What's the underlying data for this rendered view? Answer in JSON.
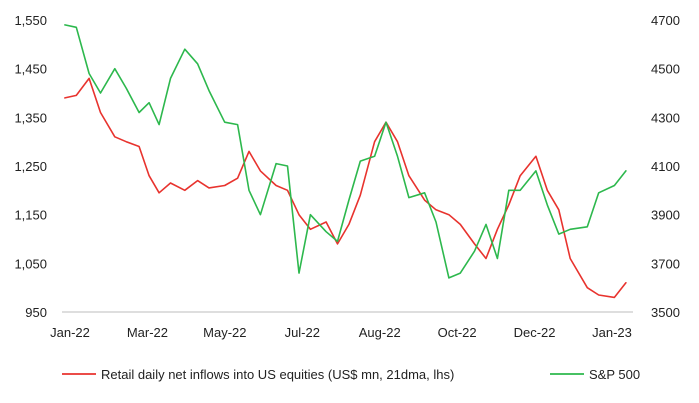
{
  "chart_data": {
    "type": "line",
    "title": "",
    "xlabel": "",
    "ylabel": "",
    "x_tick_labels": [
      "Jan-22",
      "Mar-22",
      "May-22",
      "Jul-22",
      "Aug-22",
      "Oct-22",
      "Dec-22",
      "Jan-23"
    ],
    "y_left": {
      "ticks": [
        "1,550",
        "1,450",
        "1,350",
        "1,250",
        "1,150",
        "1,050",
        "950"
      ],
      "range": [
        950,
        1550
      ]
    },
    "y_right": {
      "ticks": [
        "4700",
        "4500",
        "4300",
        "4100",
        "3900",
        "3700",
        "3500"
      ],
      "range": [
        3500,
        4700
      ]
    },
    "grid": false,
    "legend_position": "bottom",
    "series": [
      {
        "name": "Retail daily net inflows into US equities (US$ mn, 21dma, lhs)",
        "color": "#e8332e",
        "axis": "left",
        "x": [
          "2022-01-03",
          "2022-01-11",
          "2022-01-20",
          "2022-01-28",
          "2022-02-07",
          "2022-02-15",
          "2022-02-24",
          "2022-03-03",
          "2022-03-10",
          "2022-03-18",
          "2022-03-28",
          "2022-04-06",
          "2022-04-14",
          "2022-04-25",
          "2022-05-04",
          "2022-05-12",
          "2022-05-20",
          "2022-05-31",
          "2022-06-08",
          "2022-06-16",
          "2022-06-24",
          "2022-07-05",
          "2022-07-13",
          "2022-07-21",
          "2022-07-29",
          "2022-08-08",
          "2022-08-16",
          "2022-08-24",
          "2022-09-01",
          "2022-09-12",
          "2022-09-20",
          "2022-09-29",
          "2022-10-07",
          "2022-10-17",
          "2022-10-25",
          "2022-11-02",
          "2022-11-10",
          "2022-11-18",
          "2022-11-29",
          "2022-12-07",
          "2022-12-15",
          "2022-12-23",
          "2023-01-04",
          "2023-01-12",
          "2023-01-23",
          "2023-01-31"
        ],
        "values": [
          1390,
          1395,
          1430,
          1360,
          1310,
          1300,
          1290,
          1230,
          1195,
          1215,
          1200,
          1220,
          1205,
          1210,
          1225,
          1280,
          1240,
          1210,
          1200,
          1150,
          1120,
          1135,
          1090,
          1130,
          1190,
          1300,
          1340,
          1300,
          1230,
          1180,
          1160,
          1150,
          1130,
          1090,
          1060,
          1120,
          1170,
          1230,
          1270,
          1200,
          1160,
          1060,
          1000,
          985,
          980,
          1010
        ]
      },
      {
        "name": "S&P 500",
        "color": "#2db84d",
        "axis": "right",
        "x": [
          "2022-01-03",
          "2022-01-11",
          "2022-01-20",
          "2022-01-28",
          "2022-02-07",
          "2022-02-15",
          "2022-02-24",
          "2022-03-03",
          "2022-03-10",
          "2022-03-18",
          "2022-03-28",
          "2022-04-06",
          "2022-04-14",
          "2022-04-25",
          "2022-05-04",
          "2022-05-12",
          "2022-05-20",
          "2022-05-31",
          "2022-06-08",
          "2022-06-16",
          "2022-06-24",
          "2022-07-05",
          "2022-07-13",
          "2022-07-21",
          "2022-07-29",
          "2022-08-08",
          "2022-08-16",
          "2022-08-24",
          "2022-09-01",
          "2022-09-12",
          "2022-09-20",
          "2022-09-29",
          "2022-10-07",
          "2022-10-17",
          "2022-10-25",
          "2022-11-02",
          "2022-11-10",
          "2022-11-18",
          "2022-11-29",
          "2022-12-07",
          "2022-12-15",
          "2022-12-23",
          "2023-01-04",
          "2023-01-12",
          "2023-01-23",
          "2023-01-31"
        ],
        "values": [
          4680,
          4670,
          4480,
          4400,
          4500,
          4420,
          4320,
          4360,
          4270,
          4460,
          4580,
          4520,
          4410,
          4280,
          4270,
          4000,
          3900,
          4110,
          4100,
          3660,
          3900,
          3830,
          3790,
          3960,
          4120,
          4140,
          4280,
          4140,
          3970,
          3990,
          3870,
          3640,
          3660,
          3750,
          3860,
          3720,
          4000,
          4000,
          4080,
          3940,
          3820,
          3840,
          3850,
          3990,
          4020,
          4080
        ]
      }
    ]
  }
}
